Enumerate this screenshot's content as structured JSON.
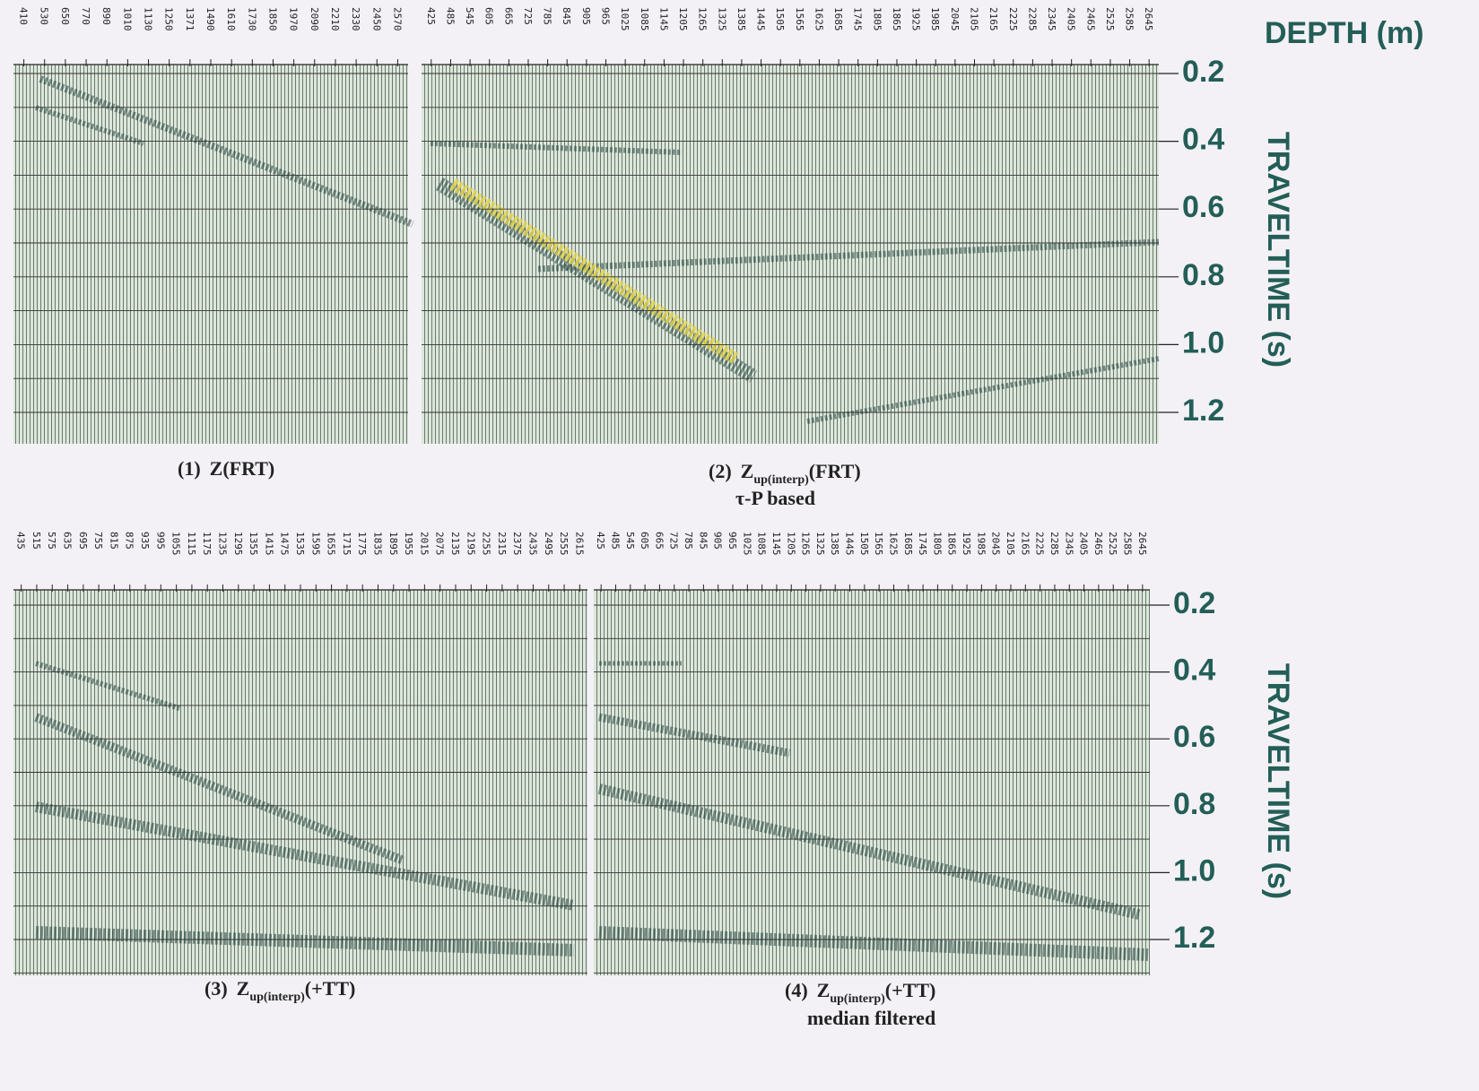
{
  "depth_axis_title": "DEPTH (m)",
  "rows": [
    {
      "time_axis_title": "TRAVELTIME (s)",
      "times": [
        "0.2",
        "0.4",
        "0.6",
        "0.8",
        "1.0",
        "1.2"
      ],
      "panels": [
        {
          "depths": [
            410,
            530,
            650,
            770,
            890,
            1010,
            1130,
            1250,
            1371,
            1490,
            1610,
            1730,
            1850,
            1970,
            2090,
            2210,
            2330,
            2450,
            2570
          ],
          "caption": {
            "label": "(1)",
            "base": "Z(FRT)"
          }
        },
        {
          "depths": [
            425,
            485,
            545,
            605,
            665,
            725,
            785,
            845,
            905,
            965,
            1025,
            1085,
            1145,
            1205,
            1265,
            1325,
            1385,
            1445,
            1505,
            1565,
            1625,
            1685,
            1745,
            1805,
            1865,
            1925,
            1985,
            2045,
            2105,
            2165,
            2225,
            2285,
            2345,
            2405,
            2465,
            2525,
            2585,
            2645
          ],
          "caption": {
            "label": "(2)",
            "base": "Z",
            "sub": "up(interp)",
            "suffix": "(FRT)",
            "note": "τ-P based"
          }
        }
      ]
    },
    {
      "time_axis_title": "TRAVELTIME (s)",
      "times": [
        "0.2",
        "0.4",
        "0.6",
        "0.8",
        "1.0",
        "1.2"
      ],
      "panels": [
        {
          "depths": [
            435,
            515,
            575,
            635,
            695,
            755,
            815,
            875,
            935,
            995,
            1055,
            1115,
            1175,
            1235,
            1295,
            1355,
            1415,
            1475,
            1535,
            1595,
            1655,
            1715,
            1775,
            1835,
            1895,
            1955,
            2015,
            2075,
            2135,
            2195,
            2255,
            2315,
            2375,
            2435,
            2495,
            2555,
            2615
          ],
          "caption": {
            "label": "(3)",
            "base": "Z",
            "sub": "up(interp)",
            "suffix": "(+TT)"
          }
        },
        {
          "depths": [
            425,
            485,
            545,
            605,
            665,
            725,
            785,
            845,
            905,
            965,
            1025,
            1085,
            1145,
            1205,
            1265,
            1325,
            1385,
            1445,
            1505,
            1565,
            1625,
            1685,
            1745,
            1805,
            1865,
            1925,
            1985,
            2045,
            2105,
            2165,
            2225,
            2285,
            2345,
            2405,
            2465,
            2525,
            2585,
            2645
          ],
          "caption": {
            "label": "(4)",
            "base": "Z",
            "sub": "up(interp)",
            "suffix": "(+TT)",
            "note": "median filtered"
          }
        }
      ]
    }
  ]
}
